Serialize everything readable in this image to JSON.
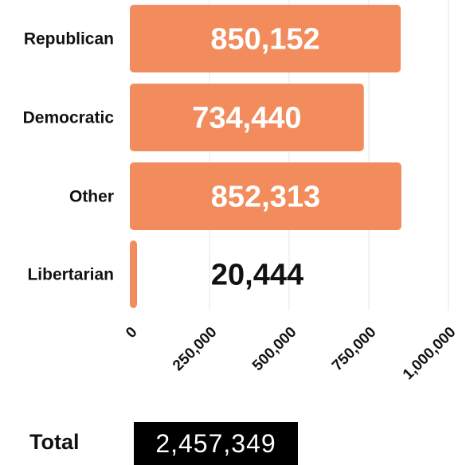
{
  "chart_data": {
    "type": "bar",
    "orientation": "horizontal",
    "categories": [
      "Republican",
      "Democratic",
      "Other",
      "Libertarian"
    ],
    "values": [
      850152,
      734440,
      852313,
      20444
    ],
    "value_labels": [
      "850,152",
      "734,440",
      "852,313",
      "20,444"
    ],
    "xlim": [
      0,
      1000000
    ],
    "x_ticks": [
      0,
      250000,
      500000,
      750000,
      1000000
    ],
    "x_tick_labels": [
      "0",
      "250,000",
      "500,000",
      "750,000",
      "1,000,000"
    ],
    "grid": true,
    "bar_color": "#f28c5c",
    "label_inside_color": "#ffffff",
    "label_outside_color": "#111111"
  },
  "total": {
    "label": "Total",
    "value": "2,457,349"
  }
}
